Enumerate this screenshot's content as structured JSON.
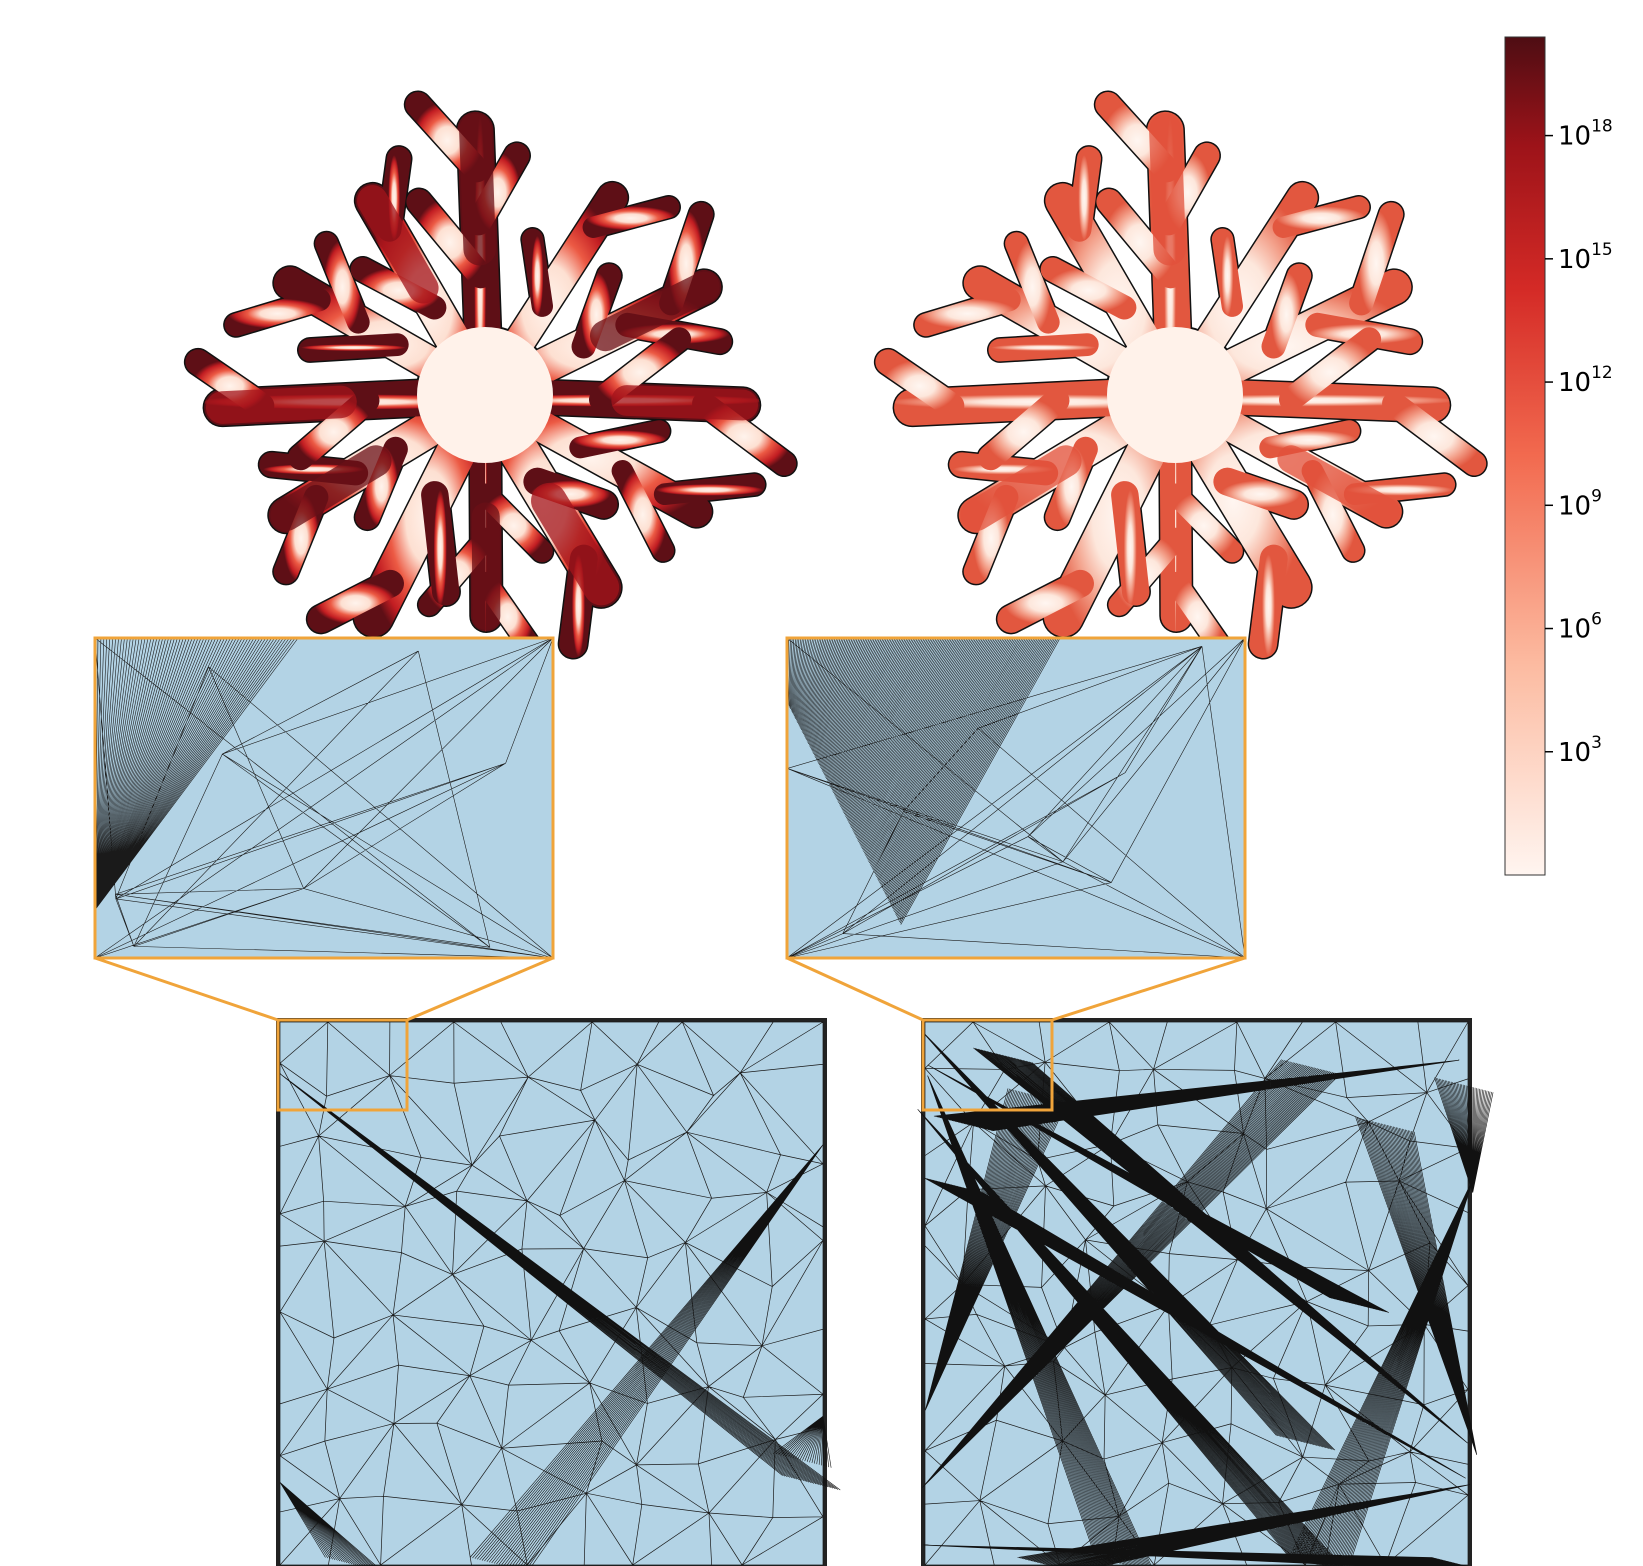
{
  "colorbar": {
    "scale": "log",
    "colormap": "Reds",
    "color_low": "#fff5f0",
    "color_mid": "#e03429",
    "color_high": "#4e0d13",
    "ticks": [
      {
        "base": "10",
        "exp": "3",
        "value": 1000
      },
      {
        "base": "10",
        "exp": "6",
        "value": 1000000
      },
      {
        "base": "10",
        "exp": "9",
        "value": 1000000000
      },
      {
        "base": "10",
        "exp": "12",
        "value": 1000000000000
      },
      {
        "base": "10",
        "exp": "15",
        "value": 1000000000000000
      },
      {
        "base": "10",
        "exp": "18",
        "value": 1000000000000000000
      }
    ]
  },
  "panels": [
    {
      "id": "left",
      "shape": "snowflake",
      "field_intensity": "high",
      "mesh_quality": "regular",
      "mesh_fill": "#b3d3e5"
    },
    {
      "id": "right",
      "shape": "snowflake",
      "field_intensity": "moderate",
      "mesh_quality": "degenerate",
      "mesh_fill": "#b3d3e5"
    }
  ],
  "highlight_color": "#f0a43a"
}
